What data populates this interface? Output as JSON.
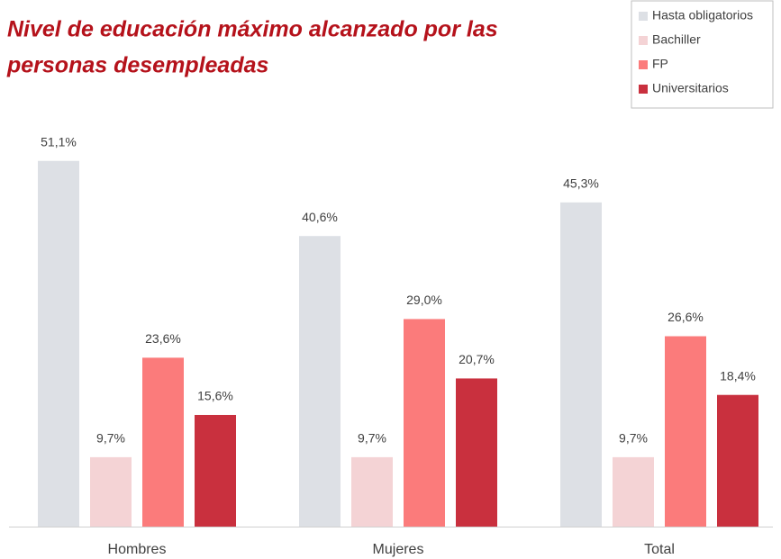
{
  "chart_data": {
    "type": "bar",
    "title_lines": [
      "Nivel de educación máximo alcanzado por las",
      "personas desempleadas"
    ],
    "categories": [
      "Hombres",
      "Mujeres",
      "Total"
    ],
    "series": [
      {
        "name": "Hasta obligatorios",
        "color": "#dde0e5",
        "values": [
          51.1,
          40.6,
          45.3
        ],
        "value_labels": [
          "51,1%",
          "40,6%",
          "45,3%"
        ]
      },
      {
        "name": "Bachiller",
        "color": "#f4d3d5",
        "values": [
          9.7,
          9.7,
          9.7
        ],
        "value_labels": [
          "9,7%",
          "9,7%",
          "9,7%"
        ]
      },
      {
        "name": "FP",
        "color": "#fb7b7b",
        "values": [
          23.6,
          29.0,
          26.6
        ],
        "value_labels": [
          "23,6%",
          "29,0%",
          "26,6%"
        ]
      },
      {
        "name": "Universitarios",
        "color": "#c9303e",
        "values": [
          15.6,
          20.7,
          18.4
        ],
        "value_labels": [
          "15,6%",
          "20,7%",
          "18,4%"
        ]
      }
    ]
  }
}
